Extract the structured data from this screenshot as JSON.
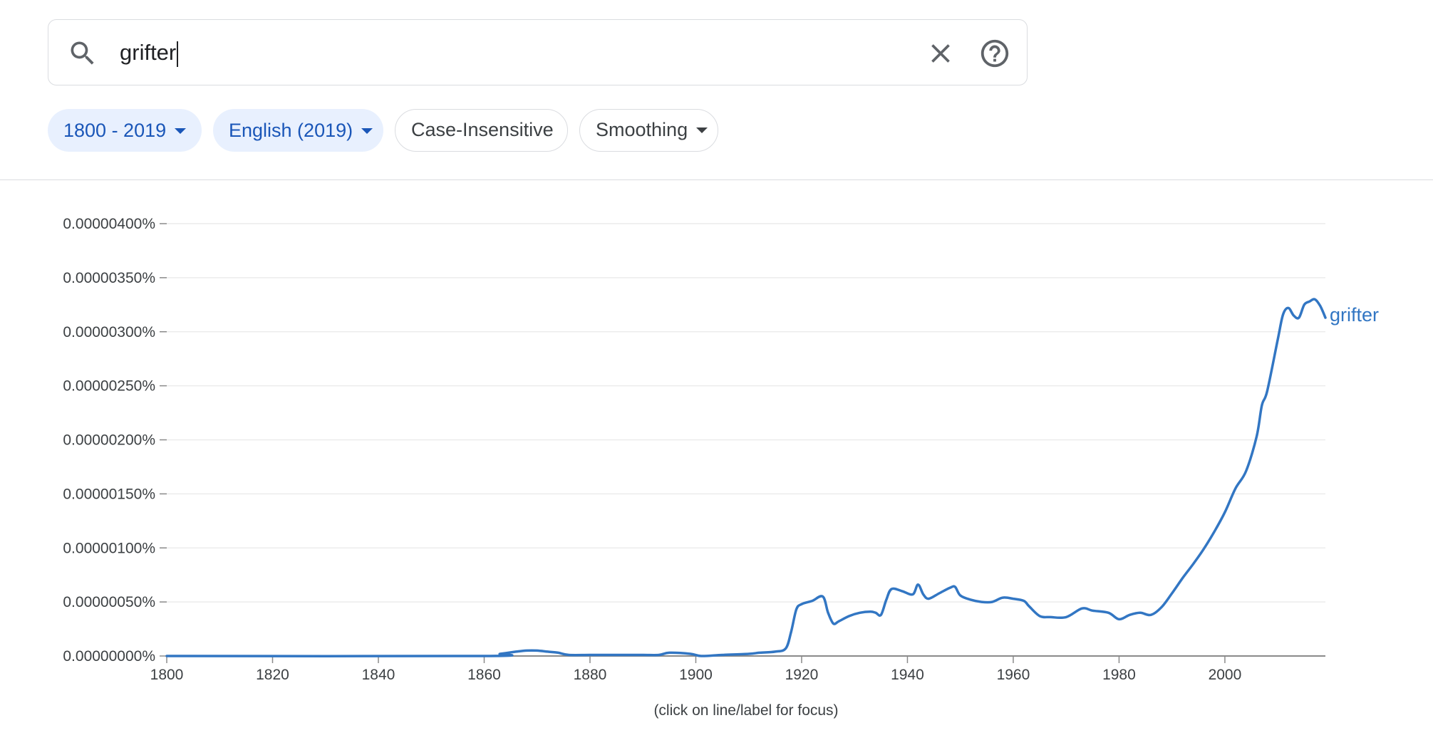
{
  "search": {
    "query": "grifter"
  },
  "filters": {
    "year_range": "1800 - 2019",
    "corpus": "English (2019)",
    "case": "Case-Insensitive",
    "smoothing": "Smoothing"
  },
  "icons": {
    "search": "search-icon",
    "clear": "close-icon",
    "help": "help-icon",
    "dropdown": "caret-down-icon"
  },
  "colors": {
    "accent": "#1a56b8",
    "line": "#3276c3",
    "chip_active_bg": "#e8f0fe"
  },
  "footer": {
    "note": "(click on line/label for focus)"
  },
  "chart_data": {
    "type": "line",
    "title": "",
    "xlabel": "",
    "ylabel": "",
    "xlim": [
      1800,
      2019
    ],
    "ylim": [
      0,
      4e-06
    ],
    "x_ticks": [
      1800,
      1820,
      1840,
      1860,
      1880,
      1900,
      1920,
      1940,
      1960,
      1980,
      2000
    ],
    "y_tick_values": [
      0,
      5e-07,
      1e-06,
      1.5e-06,
      2e-06,
      2.5e-06,
      3e-06,
      3.5e-06,
      4e-06
    ],
    "y_tick_labels": [
      "0.00000000%",
      "0.00000050%",
      "0.00000100%",
      "0.00000150%",
      "0.00000200%",
      "0.00000250%",
      "0.00000300%",
      "0.00000350%",
      "0.00000400%"
    ],
    "grid": true,
    "series": [
      {
        "name": "grifter",
        "x": [
          1800,
          1860,
          1863,
          1866,
          1868,
          1870,
          1872,
          1874,
          1876,
          1880,
          1885,
          1890,
          1893,
          1895,
          1899,
          1901,
          1905,
          1910,
          1912,
          1915,
          1917,
          1918,
          1919,
          1920,
          1922,
          1924,
          1925,
          1926,
          1927,
          1929,
          1931,
          1933,
          1934,
          1935,
          1936,
          1937,
          1939,
          1941,
          1942,
          1943,
          1944,
          1946,
          1948,
          1949,
          1950,
          1952,
          1954,
          1956,
          1958,
          1960,
          1962,
          1963,
          1965,
          1967,
          1970,
          1973,
          1975,
          1978,
          1980,
          1982,
          1984,
          1986,
          1988,
          1990,
          1992,
          1994,
          1996,
          1998,
          2000,
          2002,
          2004,
          2006,
          2007,
          2008,
          2010,
          2011,
          2012,
          2013,
          2014,
          2015,
          2016,
          2017,
          2018,
          2019
        ],
        "values": [
          0,
          0,
          2e-08,
          4e-08,
          5e-08,
          5e-08,
          4e-08,
          3e-08,
          1e-08,
          1e-08,
          1e-08,
          1e-08,
          1e-08,
          3e-08,
          2e-08,
          0,
          1e-08,
          2e-08,
          3e-08,
          4e-08,
          7e-08,
          2.2e-07,
          4.3e-07,
          4.8e-07,
          5.1e-07,
          5.5e-07,
          4e-07,
          3e-07,
          3.2e-07,
          3.7e-07,
          4e-07,
          4.1e-07,
          4e-07,
          3.8e-07,
          5.2e-07,
          6.2e-07,
          6e-07,
          5.7e-07,
          6.6e-07,
          5.7e-07,
          5.3e-07,
          5.8e-07,
          6.3e-07,
          6.4e-07,
          5.6e-07,
          5.2e-07,
          5e-07,
          5e-07,
          5.4e-07,
          5.3e-07,
          5.1e-07,
          4.6e-07,
          3.7e-07,
          3.6e-07,
          3.6e-07,
          4.4e-07,
          4.2e-07,
          4e-07,
          3.4e-07,
          3.8e-07,
          4e-07,
          3.8e-07,
          4.5e-07,
          5.8e-07,
          7.2e-07,
          8.5e-07,
          9.9e-07,
          1.15e-06,
          1.33e-06,
          1.55e-06,
          1.71e-06,
          2.03e-06,
          2.32e-06,
          2.45e-06,
          2.93e-06,
          3.16e-06,
          3.22e-06,
          3.15e-06,
          3.13e-06,
          3.25e-06,
          3.28e-06,
          3.3e-06,
          3.24e-06,
          3.13e-06
        ]
      }
    ]
  }
}
